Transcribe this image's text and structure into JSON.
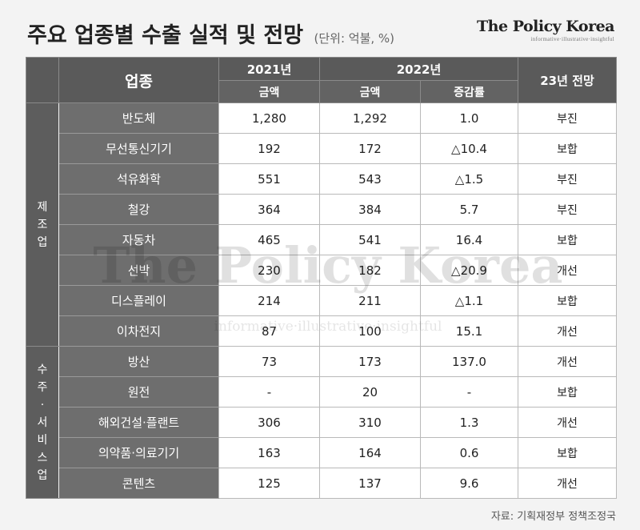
{
  "header": {
    "title": "주요 업종별 수출 실적 및 전망",
    "unit": "(단위: 억불, %)",
    "brand": "The Policy Korea",
    "brand_tagline": "informative·illustrative·insightful"
  },
  "table": {
    "col_industry": "업종",
    "year_2021": "2021년",
    "year_2022": "2022년",
    "col_2021_amount": "금액",
    "col_2022_amount": "금액",
    "col_change": "증감률",
    "col_outlook": "23년 전망",
    "groups": [
      {
        "label": "제조업",
        "rows": [
          {
            "name": "반도체",
            "v2021": "1,280",
            "v2022": "1,292",
            "change": "1.0",
            "outlook": "부진"
          },
          {
            "name": "무선통신기기",
            "v2021": "192",
            "v2022": "172",
            "change": "△10.4",
            "outlook": "보합"
          },
          {
            "name": "석유화학",
            "v2021": "551",
            "v2022": "543",
            "change": "△1.5",
            "outlook": "부진"
          },
          {
            "name": "철강",
            "v2021": "364",
            "v2022": "384",
            "change": "5.7",
            "outlook": "부진"
          },
          {
            "name": "자동차",
            "v2021": "465",
            "v2022": "541",
            "change": "16.4",
            "outlook": "보합"
          },
          {
            "name": "선박",
            "v2021": "230",
            "v2022": "182",
            "change": "△20.9",
            "outlook": "개선"
          },
          {
            "name": "디스플레이",
            "v2021": "214",
            "v2022": "211",
            "change": "△1.1",
            "outlook": "보합"
          },
          {
            "name": "이차전지",
            "v2021": "87",
            "v2022": "100",
            "change": "15.1",
            "outlook": "개선"
          }
        ]
      },
      {
        "label": "수주·서비스업",
        "rows": [
          {
            "name": "방산",
            "v2021": "73",
            "v2022": "173",
            "change": "137.0",
            "outlook": "개선"
          },
          {
            "name": "원전",
            "v2021": "-",
            "v2022": "20",
            "change": "-",
            "outlook": "보합"
          },
          {
            "name": "해외건설·플랜트",
            "v2021": "306",
            "v2022": "310",
            "change": "1.3",
            "outlook": "개선"
          },
          {
            "name": "의약품·의료기기",
            "v2021": "163",
            "v2022": "164",
            "change": "0.6",
            "outlook": "보합"
          },
          {
            "name": "콘텐츠",
            "v2021": "125",
            "v2022": "137",
            "change": "9.6",
            "outlook": "개선"
          }
        ]
      }
    ]
  },
  "source": "자료: 기획재정부 정책조정국",
  "watermark": {
    "text": "The Policy Korea",
    "tagline": "informative·illustrative·insightful"
  }
}
